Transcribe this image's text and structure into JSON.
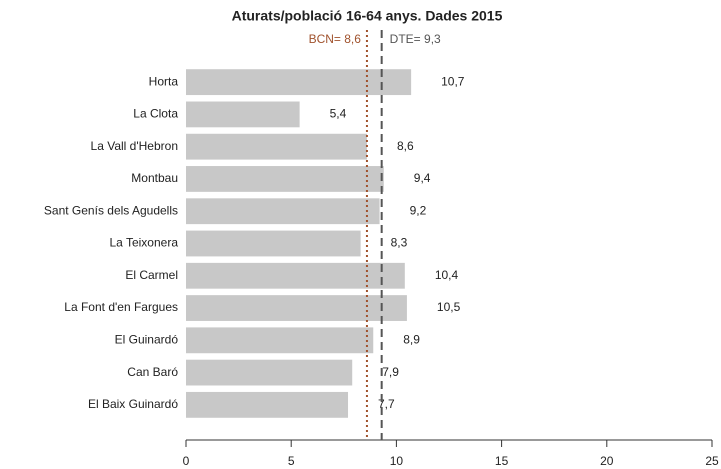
{
  "chart_data": {
    "type": "bar",
    "orientation": "horizontal",
    "title": "Aturats/població 16-64 anys. Dades 2015",
    "categories": [
      "Horta",
      "La Clota",
      "La Vall d'Hebron",
      "Montbau",
      "Sant Genís dels Agudells",
      "La Teixonera",
      "El Carmel",
      "La Font d'en Fargues",
      "El Guinardó",
      "Can Baró",
      "El Baix Guinardó"
    ],
    "values": [
      10.7,
      5.4,
      8.6,
      9.4,
      9.2,
      8.3,
      10.4,
      10.5,
      8.9,
      7.9,
      7.7
    ],
    "value_labels": [
      "10,7",
      "5,4",
      "8,6",
      "9,4",
      "9,2",
      "8,3",
      "10,4",
      "10,5",
      "8,9",
      "7,9",
      "7,7"
    ],
    "color": "#c8c8c8",
    "xlim": [
      0,
      25
    ],
    "xticks": [
      0,
      5,
      10,
      15,
      20,
      25
    ],
    "reference_lines": [
      {
        "label": "BCN= 8,6",
        "value": 8.6,
        "color": "#a0522d",
        "style": "dotted"
      },
      {
        "label": "DTE= 9,3",
        "value": 9.3,
        "color": "#555555",
        "style": "dashed"
      }
    ]
  }
}
